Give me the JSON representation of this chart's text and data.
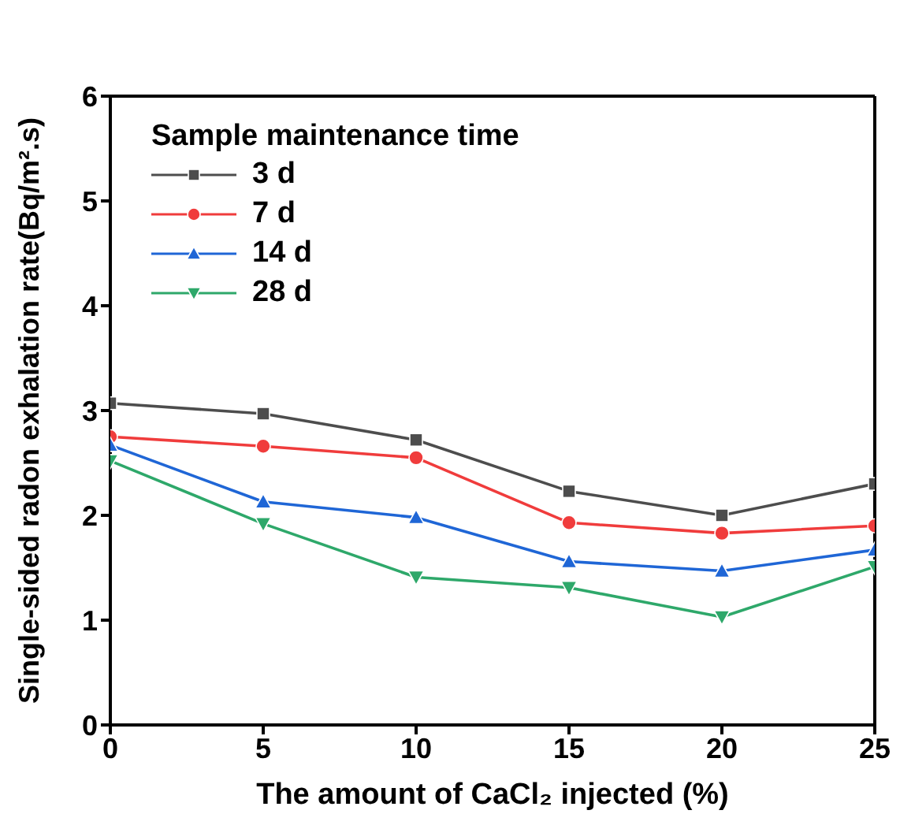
{
  "chart_data": {
    "type": "line",
    "xlabel": "The amount of CaCl₂ injected (%)",
    "ylabel": "Single-sided radon exhalation rate(Bq/m².s)",
    "legend_title": "Sample maintenance time",
    "x": [
      0,
      5,
      10,
      15,
      20,
      25
    ],
    "xlim": [
      0,
      25
    ],
    "xticks": [
      0,
      5,
      10,
      15,
      20,
      25
    ],
    "ylim": [
      0,
      6
    ],
    "yticks": [
      0,
      1,
      2,
      3,
      4,
      5,
      6
    ],
    "grid": false,
    "legend": "top left",
    "line_style": "solid",
    "series": [
      {
        "name": "3 d",
        "color": "#4d4d4d",
        "marker": "square",
        "values": [
          3.07,
          2.97,
          2.72,
          2.23,
          2.0,
          2.3
        ]
      },
      {
        "name": "7 d",
        "color": "#f03c3c",
        "marker": "circle",
        "values": [
          2.75,
          2.66,
          2.55,
          1.93,
          1.83,
          1.9
        ]
      },
      {
        "name": "14 d",
        "color": "#1f66d6",
        "marker": "triangle",
        "values": [
          2.67,
          2.13,
          1.98,
          1.56,
          1.47,
          1.67
        ]
      },
      {
        "name": "28 d",
        "color": "#2ea86a",
        "marker": "triangle-down",
        "values": [
          2.52,
          1.92,
          1.41,
          1.31,
          1.03,
          1.51
        ]
      }
    ]
  }
}
